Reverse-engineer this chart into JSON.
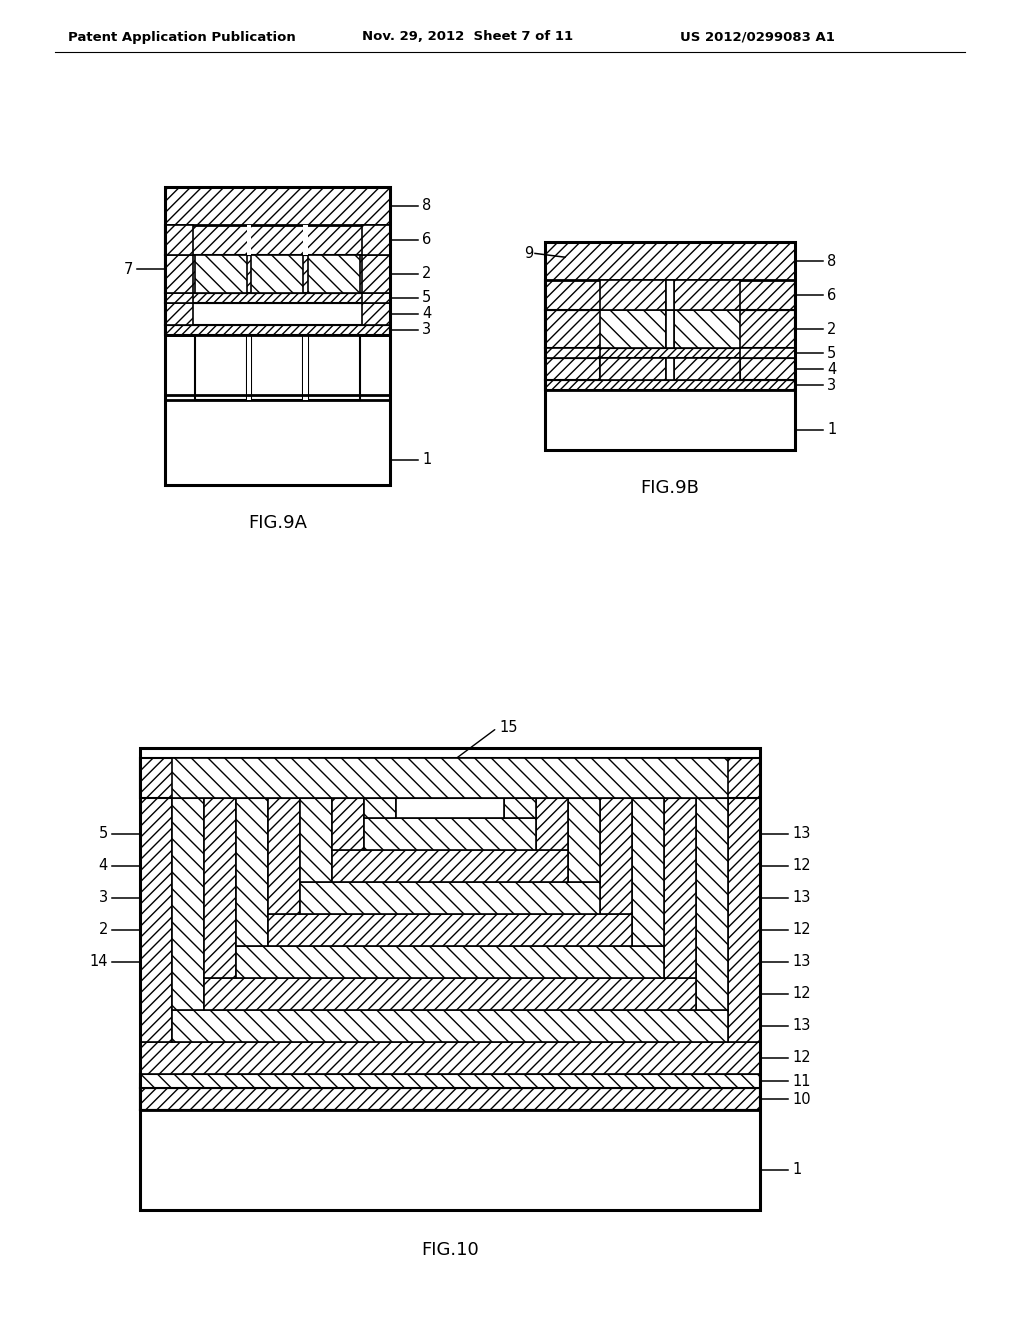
{
  "header_left": "Patent Application Publication",
  "header_mid": "Nov. 29, 2012  Sheet 7 of 11",
  "header_right": "US 2012/0299083 A1",
  "background_color": "#ffffff",
  "fig9a_label": "FIG.9A",
  "fig9b_label": "FIG.9B",
  "fig10_label": "FIG.10"
}
